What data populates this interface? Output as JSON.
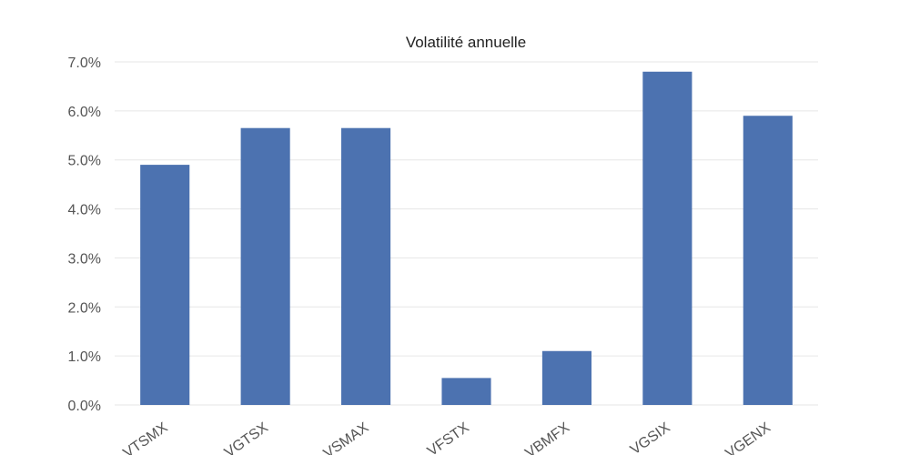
{
  "chart_data": {
    "type": "bar",
    "title": "Volatilité annuelle",
    "xlabel": "",
    "ylabel": "",
    "categories": [
      "VTSMX",
      "VGTSX",
      "VSMAX",
      "VFSTX",
      "VBMFX",
      "VGSIX",
      "VGENX"
    ],
    "values": [
      4.9,
      5.65,
      5.65,
      0.55,
      1.1,
      6.8,
      5.9
    ],
    "value_unit": "%",
    "ylim": [
      0,
      7
    ],
    "yticks": [
      0,
      1,
      2,
      3,
      4,
      5,
      6,
      7
    ],
    "ytick_labels": [
      "0.0%",
      "1.0%",
      "2.0%",
      "3.0%",
      "4.0%",
      "5.0%",
      "6.0%",
      "7.0%"
    ],
    "grid": true,
    "legend": "none",
    "bar_color": "#4c72b0"
  }
}
